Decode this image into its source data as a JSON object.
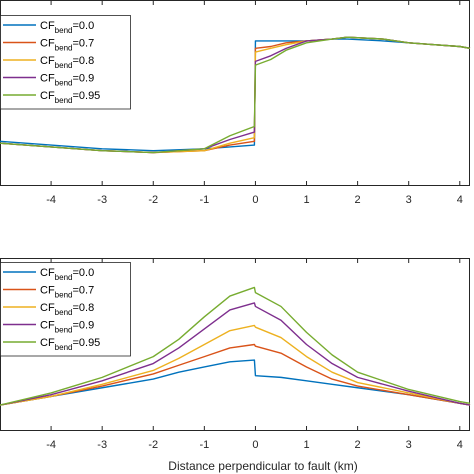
{
  "colors": {
    "axis": "#262626",
    "series": [
      "#0072BD",
      "#D95319",
      "#EDB120",
      "#7E2F8E",
      "#77AC30"
    ]
  },
  "chart_data": [
    {
      "type": "line",
      "xlim": [
        -5,
        4.2
      ],
      "ylim": [
        0,
        1
      ],
      "x_ticks": [
        -4,
        -3,
        -2,
        -1,
        0,
        1,
        2,
        3,
        4
      ],
      "x_tick_labels": [
        "-4",
        "-3",
        "-2",
        "-1",
        "0",
        "1",
        "2",
        "3",
        "4"
      ],
      "grid": false,
      "legend_position": "top-left",
      "series": [
        {
          "legend_base": "CF",
          "legend_sub": "bend",
          "legend_suffix": "=0.0",
          "x": [
            -5,
            -4,
            -3,
            -2,
            -1,
            -0.5,
            -0.02,
            0,
            0.3,
            0.6,
            1,
            1.5,
            1.8,
            2.5,
            3,
            3.5,
            4,
            4.2
          ],
          "y": [
            0.24,
            0.22,
            0.2,
            0.19,
            0.2,
            0.21,
            0.22,
            0.78,
            0.78,
            0.78,
            0.78,
            0.79,
            0.79,
            0.78,
            0.77,
            0.76,
            0.75,
            0.74
          ]
        },
        {
          "legend_base": "CF",
          "legend_sub": "bend",
          "legend_suffix": "=0.7",
          "x": [
            -5,
            -4,
            -3,
            -2,
            -1,
            -0.5,
            -0.02,
            0,
            0.3,
            0.6,
            1,
            1.5,
            1.8,
            2.5,
            3,
            3.5,
            4,
            4.2
          ],
          "y": [
            0.23,
            0.21,
            0.19,
            0.18,
            0.19,
            0.22,
            0.24,
            0.74,
            0.75,
            0.77,
            0.78,
            0.79,
            0.8,
            0.79,
            0.77,
            0.76,
            0.75,
            0.74
          ]
        },
        {
          "legend_base": "CF",
          "legend_sub": "bend",
          "legend_suffix": "=0.8",
          "x": [
            -5,
            -4,
            -3,
            -2,
            -1,
            -0.5,
            -0.02,
            0,
            0.3,
            0.6,
            1,
            1.5,
            1.8,
            2.5,
            3,
            3.5,
            4,
            4.2
          ],
          "y": [
            0.23,
            0.21,
            0.19,
            0.18,
            0.19,
            0.23,
            0.26,
            0.72,
            0.74,
            0.76,
            0.78,
            0.79,
            0.8,
            0.79,
            0.77,
            0.76,
            0.75,
            0.74
          ]
        },
        {
          "legend_base": "CF",
          "legend_sub": "bend",
          "legend_suffix": "=0.9",
          "x": [
            -5,
            -4,
            -3,
            -2,
            -1,
            -0.5,
            -0.02,
            0,
            0.3,
            0.6,
            1,
            1.5,
            1.8,
            2.5,
            3,
            3.5,
            4,
            4.2
          ],
          "y": [
            0.23,
            0.21,
            0.19,
            0.18,
            0.2,
            0.25,
            0.29,
            0.67,
            0.7,
            0.74,
            0.78,
            0.79,
            0.8,
            0.79,
            0.77,
            0.76,
            0.75,
            0.74
          ]
        },
        {
          "legend_base": "CF",
          "legend_sub": "bend",
          "legend_suffix": "=0.95",
          "x": [
            -5,
            -4,
            -3,
            -2,
            -1,
            -0.5,
            -0.02,
            0,
            0.3,
            0.6,
            1,
            1.5,
            1.8,
            2.5,
            3,
            3.5,
            4,
            4.2
          ],
          "y": [
            0.23,
            0.21,
            0.19,
            0.18,
            0.2,
            0.27,
            0.32,
            0.65,
            0.68,
            0.73,
            0.77,
            0.79,
            0.8,
            0.79,
            0.77,
            0.76,
            0.75,
            0.74
          ]
        }
      ]
    },
    {
      "type": "line",
      "xlim": [
        -5,
        4.2
      ],
      "ylim": [
        0,
        1
      ],
      "x_ticks": [
        -4,
        -3,
        -2,
        -1,
        0,
        1,
        2,
        3,
        4
      ],
      "x_tick_labels": [
        "-4",
        "-3",
        "-2",
        "-1",
        "0",
        "1",
        "2",
        "3",
        "4"
      ],
      "xlabel": "Distance perpendicular to fault (km)",
      "grid": false,
      "legend_position": "top-left",
      "series": [
        {
          "legend_base": "CF",
          "legend_sub": "bend",
          "legend_suffix": "=0.0",
          "x": [
            -5,
            -4,
            -3,
            -2,
            -1.5,
            -1,
            -0.5,
            -0.02,
            0,
            0.5,
            1,
            1.5,
            2,
            3,
            4,
            4.2
          ],
          "y": [
            0.15,
            0.2,
            0.25,
            0.3,
            0.34,
            0.37,
            0.4,
            0.41,
            0.32,
            0.31,
            0.29,
            0.27,
            0.25,
            0.21,
            0.16,
            0.15
          ]
        },
        {
          "legend_base": "CF",
          "legend_sub": "bend",
          "legend_suffix": "=0.7",
          "x": [
            -5,
            -4,
            -3,
            -2,
            -1.5,
            -1,
            -0.5,
            -0.02,
            0,
            0.5,
            1,
            1.5,
            2,
            3,
            4,
            4.2
          ],
          "y": [
            0.15,
            0.2,
            0.26,
            0.33,
            0.38,
            0.43,
            0.48,
            0.5,
            0.49,
            0.45,
            0.37,
            0.3,
            0.26,
            0.21,
            0.16,
            0.15
          ]
        },
        {
          "legend_base": "CF",
          "legend_sub": "bend",
          "legend_suffix": "=0.8",
          "x": [
            -5,
            -4,
            -3,
            -2,
            -1.5,
            -1,
            -0.5,
            -0.02,
            0,
            0.5,
            1,
            1.5,
            2,
            3,
            4,
            4.2
          ],
          "y": [
            0.15,
            0.2,
            0.27,
            0.35,
            0.42,
            0.5,
            0.58,
            0.61,
            0.6,
            0.54,
            0.43,
            0.34,
            0.28,
            0.22,
            0.16,
            0.15
          ]
        },
        {
          "legend_base": "CF",
          "legend_sub": "bend",
          "legend_suffix": "=0.9",
          "x": [
            -5,
            -4,
            -3,
            -2,
            -1.5,
            -1,
            -0.5,
            -0.02,
            0,
            0.5,
            1,
            1.5,
            2,
            3,
            4,
            4.2
          ],
          "y": [
            0.15,
            0.21,
            0.29,
            0.39,
            0.48,
            0.59,
            0.7,
            0.74,
            0.72,
            0.64,
            0.5,
            0.39,
            0.31,
            0.23,
            0.16,
            0.15
          ]
        },
        {
          "legend_base": "CF",
          "legend_sub": "bend",
          "legend_suffix": "=0.95",
          "x": [
            -5,
            -4,
            -3,
            -2,
            -1.5,
            -1,
            -0.5,
            -0.02,
            0,
            0.5,
            1,
            1.5,
            2,
            3,
            4,
            4.2
          ],
          "y": [
            0.15,
            0.22,
            0.31,
            0.43,
            0.53,
            0.66,
            0.78,
            0.83,
            0.8,
            0.72,
            0.57,
            0.44,
            0.34,
            0.24,
            0.17,
            0.16
          ]
        }
      ]
    }
  ]
}
